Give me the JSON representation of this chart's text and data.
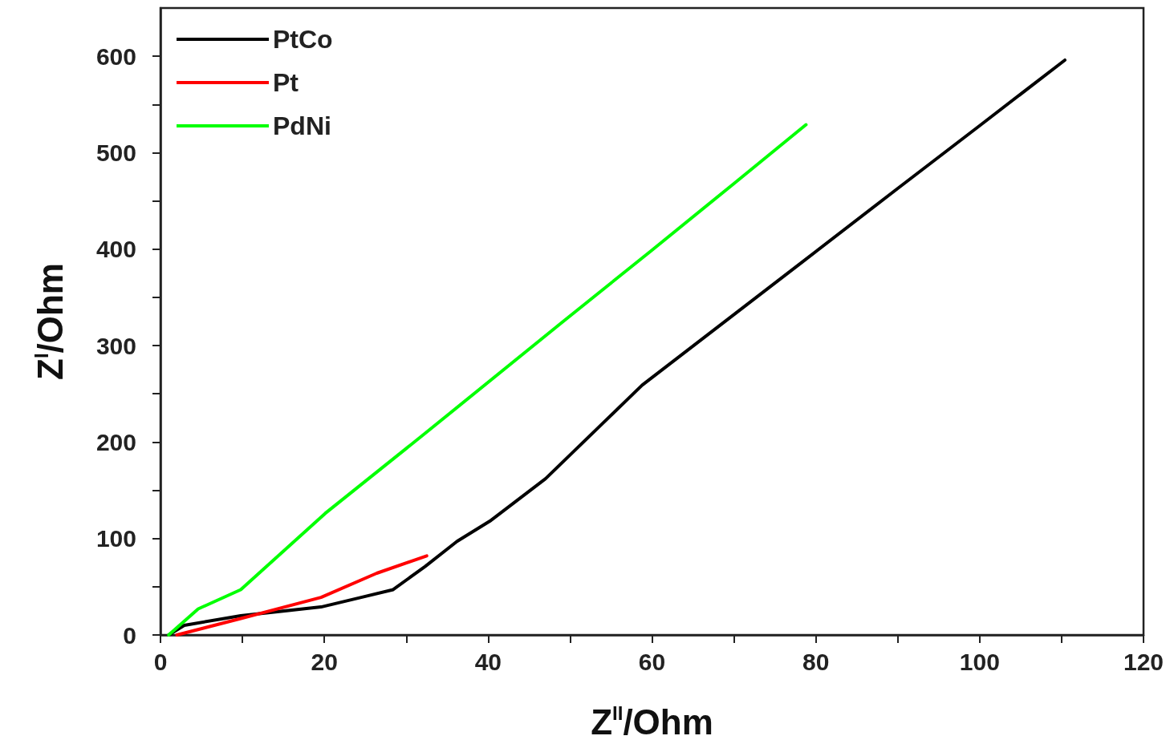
{
  "chart_data": {
    "type": "line",
    "xlabel": "Z$^{II}$/Ohm",
    "ylabel": "Z$^{I}$/Ohm",
    "xlim": [
      0,
      120
    ],
    "ylim": [
      0,
      650
    ],
    "xticks": [
      0,
      {
        "value": 10,
        "label": null
      },
      20,
      {
        "value": 30,
        "label": null
      },
      40,
      {
        "value": 50,
        "label": null
      },
      60,
      {
        "value": 70,
        "label": null
      },
      80,
      {
        "value": 90,
        "label": null
      },
      100,
      {
        "value": 110,
        "label": null
      },
      120
    ],
    "yticks": [
      0,
      {
        "value": 50,
        "label": null
      },
      100,
      {
        "value": 150,
        "label": null
      },
      200,
      {
        "value": 250,
        "label": null
      },
      300,
      {
        "value": 350,
        "label": null
      },
      400,
      {
        "value": 450,
        "label": null
      },
      500,
      {
        "value": 550,
        "label": null
      },
      600
    ],
    "grid": false,
    "legend": "top left",
    "marker": "none",
    "line_style": "solid",
    "series": [
      {
        "name": "PtCo",
        "color": "#000000",
        "x": [
          1,
          2.9,
          9.8,
          19.6,
          24.5,
          28.4,
          32.3,
          36.2,
          40.2,
          47,
          58.8,
          68.6,
          78.4,
          90,
          100,
          110.4
        ],
        "values": [
          0,
          10,
          20,
          29,
          39,
          47,
          71,
          97,
          118,
          162,
          259,
          323,
          387,
          463,
          528,
          596
        ]
      },
      {
        "name": "Pt",
        "color": "#ff0000",
        "x": [
          2,
          9.8,
          19.6,
          26.4,
          32.5
        ],
        "values": [
          0,
          17,
          39,
          64,
          82
        ]
      },
      {
        "name": "PdNi",
        "color": "#00ff00",
        "x": [
          1,
          4.6,
          9.8,
          20.1,
          32.3,
          49,
          60,
          70,
          78.8
        ],
        "values": [
          0,
          27,
          47,
          126,
          209,
          324,
          399,
          468,
          529
        ]
      }
    ]
  }
}
